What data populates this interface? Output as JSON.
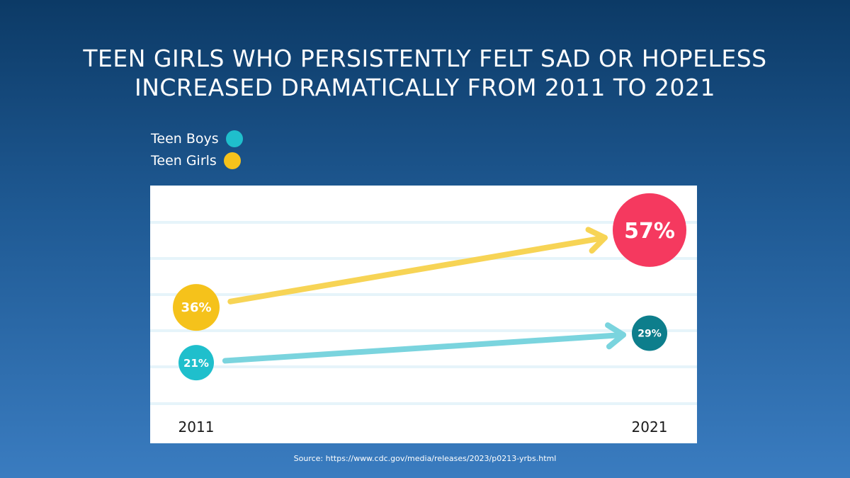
{
  "title": {
    "line1": "TEEN GIRLS WHO PERSISTENTLY FELT SAD OR HOPELESS",
    "line2": "INCREASED DRAMATICALLY FROM 2011 TO 2021"
  },
  "legend": [
    {
      "label": "Teen Boys",
      "color": "#1fbfcc"
    },
    {
      "label": "Teen Girls",
      "color": "#f5c21b"
    }
  ],
  "chart_data": {
    "type": "line",
    "title": "TEEN GIRLS WHO PERSISTENTLY FELT SAD OR HOPELESS INCREASED DRAMATICALLY FROM 2011 TO 2021",
    "categories": [
      "2011",
      "2021"
    ],
    "series": [
      {
        "name": "Teen Girls",
        "values": [
          36,
          57
        ],
        "labels": [
          "36%",
          "57%"
        ],
        "start_color": "#f5c21b",
        "end_color": "#f5395f",
        "arrow_color": "#f7d455"
      },
      {
        "name": "Teen Boys",
        "values": [
          21,
          29
        ],
        "labels": [
          "21%",
          "29%"
        ],
        "start_color": "#1fbfcc",
        "end_color": "#0d7e8c",
        "arrow_color": "#7ad4de"
      }
    ],
    "ylim": [
      10,
      65
    ],
    "grid": true
  },
  "source": "Source: https://www.cdc.gov/media/releases/2023/p0213-yrbs.html"
}
